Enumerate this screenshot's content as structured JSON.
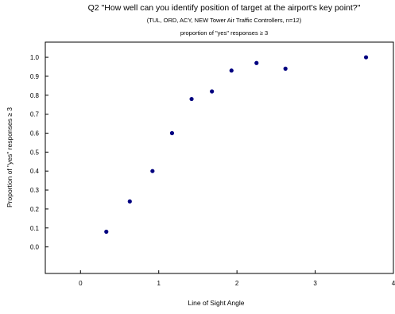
{
  "chart_data": {
    "type": "scatter",
    "title": "Q2 \"How well can you identify position of target at the airport's key point?\"",
    "subtitle": "(TUL, ORD, ACY, NEW Tower Air Traffic Controllers, n=12)",
    "subtitle2": "proportion of \"yes\" responses ≥ 3",
    "xlabel": "Line of Sight Angle",
    "ylabel": "Proportion of \"yes\" responses ≥ 3",
    "xlim": [
      -0.45,
      4.0
    ],
    "ylim": [
      -0.14,
      1.08
    ],
    "xticks": [
      0,
      1,
      2,
      3,
      4
    ],
    "xtick_labels": [
      "0",
      "1",
      "2",
      "3",
      "4"
    ],
    "yticks": [
      0.0,
      0.1,
      0.2,
      0.3,
      0.4,
      0.5,
      0.6,
      0.7,
      0.8,
      0.9,
      1.0
    ],
    "ytick_labels": [
      "0.0",
      "0.1",
      "0.2",
      "0.3",
      "0.4",
      "0.5",
      "0.6",
      "0.7",
      "0.8",
      "0.9",
      "1.0"
    ],
    "grid": false,
    "legend": false,
    "marker_color": "#000080",
    "points": [
      {
        "x": 0.33,
        "y": 0.08
      },
      {
        "x": 0.63,
        "y": 0.24
      },
      {
        "x": 0.92,
        "y": 0.4
      },
      {
        "x": 1.17,
        "y": 0.6
      },
      {
        "x": 1.42,
        "y": 0.78
      },
      {
        "x": 1.68,
        "y": 0.82
      },
      {
        "x": 1.93,
        "y": 0.93
      },
      {
        "x": 2.25,
        "y": 0.97
      },
      {
        "x": 2.62,
        "y": 0.94
      },
      {
        "x": 3.65,
        "y": 1.0
      }
    ]
  }
}
